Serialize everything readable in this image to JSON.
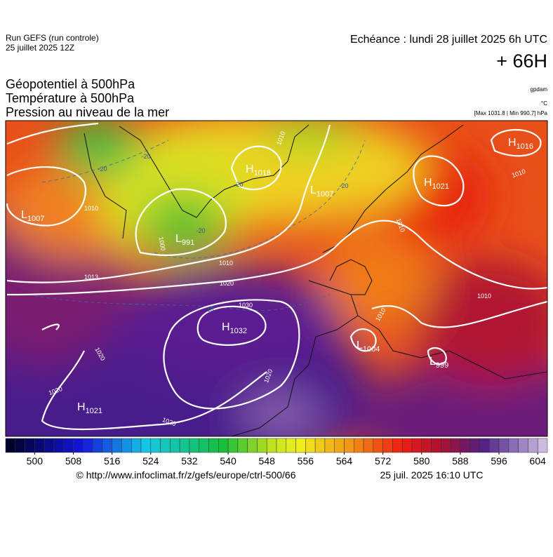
{
  "header": {
    "run": "Run GEFS (run controle)",
    "run_date": "25 juillet 2025 12Z",
    "echeance": "Echéance : lundi 28 juillet 2025 6h UTC",
    "lead": "+ 66H"
  },
  "titles": [
    "Géopotentiel à 500hPa",
    "Température à 500hPa",
    "Pression au niveau de la mer"
  ],
  "units": {
    "geopotential": "gpdam",
    "temperature": "°C",
    "pressure": "[Max 1031.8 | Min 990.7] hPa"
  },
  "pressure_centers": [
    {
      "type": "H",
      "value": "1016"
    },
    {
      "type": "H",
      "value": "1021"
    },
    {
      "type": "H",
      "value": "1018"
    },
    {
      "type": "L",
      "value": "1007"
    },
    {
      "type": "L",
      "value": "1007"
    },
    {
      "type": "L",
      "value": "991"
    },
    {
      "type": "H",
      "value": "1032"
    },
    {
      "type": "H",
      "value": "1021"
    },
    {
      "type": "L",
      "value": "1004"
    },
    {
      "type": "L",
      "value": "999"
    }
  ],
  "isobar_labels": [
    "1010",
    "1010",
    "1010",
    "1010",
    "1010",
    "1020",
    "1030",
    "1020",
    "1020",
    "1020",
    "1020",
    "1010",
    "1010",
    "1000",
    "1013"
  ],
  "temperature_labels": [
    "-20",
    "-20",
    "-20",
    "-20",
    "-10",
    "-20"
  ],
  "colorbar": {
    "lim": [
      494,
      606
    ],
    "ticks": [
      500,
      508,
      516,
      524,
      532,
      540,
      548,
      556,
      564,
      572,
      580,
      588,
      596,
      604
    ]
  },
  "footer": {
    "url": "© http://www.infoclimat.fr/z/gefs/europe/ctrl-500/66",
    "date": "25 juil. 2025 16:10 UTC"
  }
}
